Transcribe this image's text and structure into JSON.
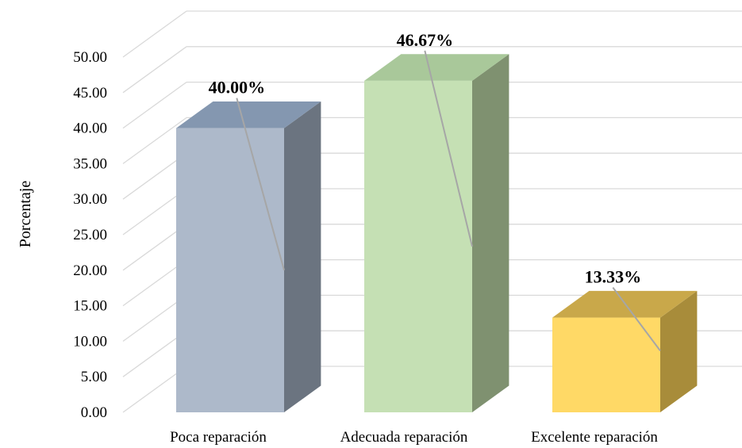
{
  "chart_data": {
    "type": "bar",
    "categories": [
      "Poca reparación",
      "Adecuada reparación",
      "Excelente reparación"
    ],
    "values": [
      40.0,
      46.67,
      13.33
    ],
    "data_labels": [
      "40.00%",
      "46.67%",
      "13.33%"
    ],
    "ylabel": "Porcentaje",
    "xlabel": "",
    "ylim": [
      0,
      50
    ],
    "yticks": [
      "0.00",
      "5.00",
      "10.00",
      "15.00",
      "20.00",
      "25.00",
      "30.00",
      "35.00",
      "40.00",
      "45.00",
      "50.00"
    ],
    "grid": true,
    "style": "3d",
    "colors": {
      "front": [
        "#adb9ca",
        "#c5e0b4",
        "#ffd966"
      ],
      "top": [
        "#8497b0",
        "#a9c89a",
        "#c9a84a"
      ],
      "side": [
        "#6b7480",
        "#7f9170",
        "#a88c3a"
      ],
      "grid": "#d9d9d9",
      "leader": "#a6a6a6"
    }
  }
}
